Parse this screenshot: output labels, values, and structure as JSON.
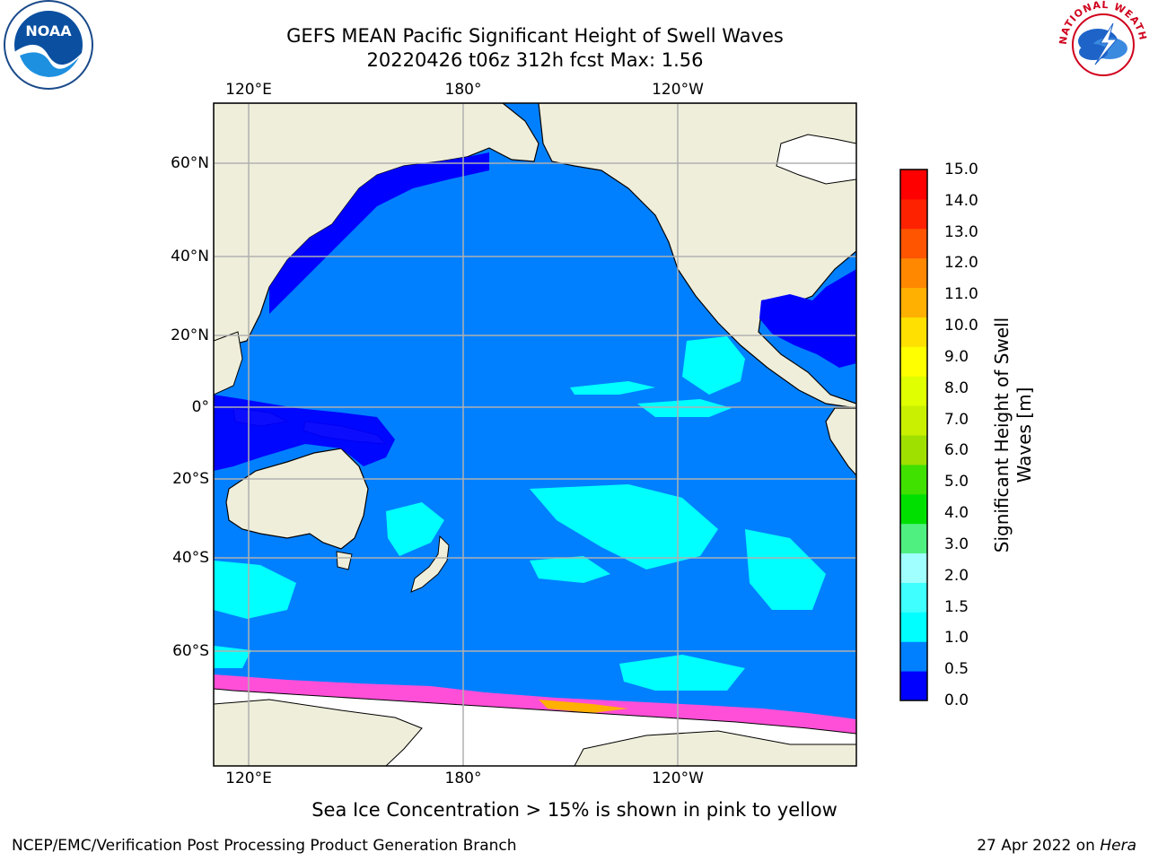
{
  "header": {
    "title_line1": "GEFS MEAN Pacific Significant Height of Swell Waves",
    "title_line2": "20220426 t06z 312h fcst   Max: 1.56"
  },
  "logos": [
    {
      "name": "noaa-logo",
      "text": "NOAA"
    },
    {
      "name": "nws-logo",
      "text": "NATIONAL WEATHER SERVICE"
    }
  ],
  "map": {
    "lon_labels_top": [
      "120°E",
      "180°",
      "120°W"
    ],
    "lon_labels_bottom": [
      "120°E",
      "180°",
      "120°W"
    ],
    "lat_labels": [
      "60°N",
      "40°N",
      "20°N",
      "0°",
      "20°S",
      "40°S",
      "60°S"
    ],
    "colors": {
      "land": "#efeedb",
      "ocean_0_5_1_0": "#0080ff",
      "ocean_0_0_5": "#0000ff",
      "swell_1_0_1_5": "#00ffff",
      "sea_ice": "#ff4fd8",
      "grid": "#b0b0b0"
    }
  },
  "colorbar": {
    "title": "Significant Height of Swell Waves [m]",
    "ticks": [
      "15.0",
      "14.0",
      "13.0",
      "12.0",
      "11.0",
      "10.0",
      "9.0",
      "8.0",
      "7.0",
      "6.0",
      "5.0",
      "4.0",
      "3.0",
      "2.0",
      "1.5",
      "1.0",
      "0.5",
      "0.0"
    ],
    "colors_bottom_to_top": [
      "#0000ff",
      "#0080ff",
      "#00ffff",
      "#40ffff",
      "#a0ffff",
      "#50f080",
      "#00e000",
      "#40e000",
      "#a0e000",
      "#c8f000",
      "#e0ff00",
      "#ffff00",
      "#ffe000",
      "#ffb000",
      "#ff8800",
      "#ff5500",
      "#ff2200",
      "#ff0000"
    ]
  },
  "caption": "Sea Ice Concentration > 15% is shown in pink to yellow",
  "footer": {
    "left": "NCEP/EMC/Verification Post Processing Product Generation Branch",
    "right_prefix": "27 Apr 2022 on ",
    "right_italic": "Hera"
  }
}
